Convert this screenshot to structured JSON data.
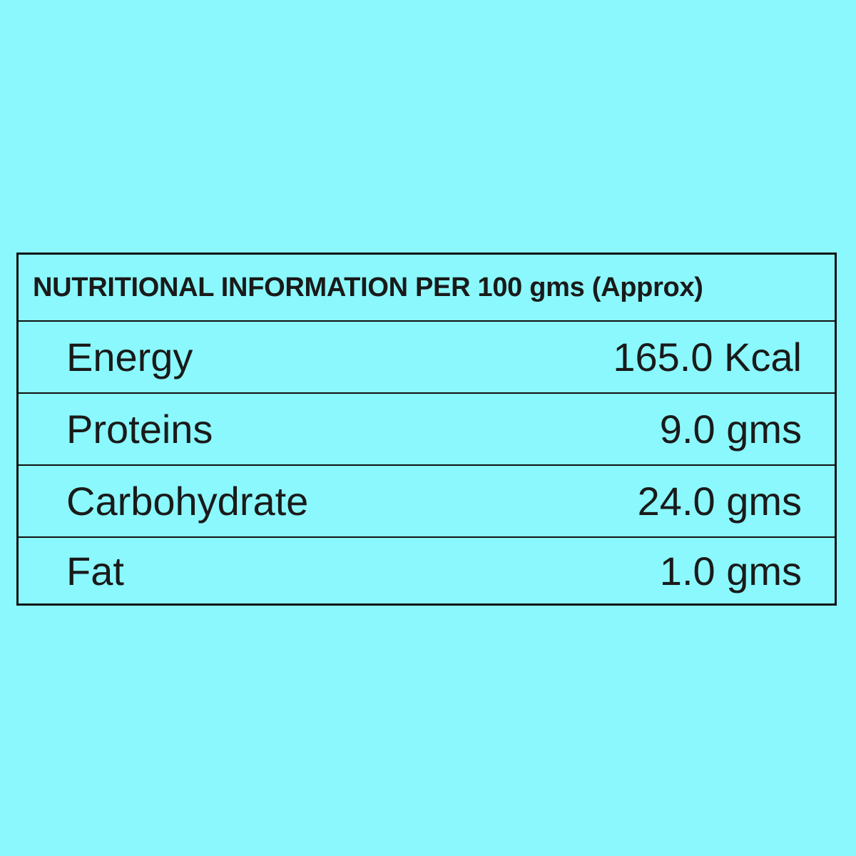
{
  "table": {
    "title": "NUTRITIONAL INFORMATION PER 100 gms (Approx)",
    "rows": [
      [
        "Energy",
        "165.0 Kcal"
      ],
      [
        "Proteins",
        "9.0 gms"
      ],
      [
        "Carbohydrate",
        "24.0 gms"
      ],
      [
        "Fat",
        "1.0 gms"
      ]
    ]
  }
}
